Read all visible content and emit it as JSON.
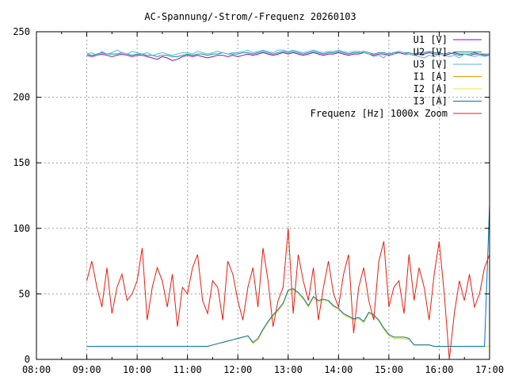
{
  "chart_data": {
    "type": "line",
    "title": "AC-Spannung/-Strom/-Frequenz 20260103",
    "xlabel": "",
    "ylabel": "",
    "xlim": [
      8,
      17
    ],
    "ylim": [
      0,
      250
    ],
    "grid": true,
    "legend_position": "top-right",
    "x_tick_labels": [
      "08:00",
      "09:00",
      "10:00",
      "11:00",
      "12:00",
      "13:00",
      "14:00",
      "15:00",
      "16:00",
      "17:00"
    ],
    "x_tick_values": [
      8,
      9,
      10,
      11,
      12,
      13,
      14,
      15,
      16,
      17
    ],
    "y_ticks": [
      0,
      50,
      100,
      150,
      200,
      250
    ],
    "x_start": 9.0,
    "x_step": 0.1,
    "series": [
      {
        "name": "U1 [V]",
        "color": "#9400d3",
        "values": [
          232,
          231,
          232,
          233,
          232,
          231,
          232,
          233,
          232,
          231,
          232,
          232,
          231,
          230,
          229,
          231,
          230,
          228,
          229,
          231,
          232,
          231,
          232,
          231,
          230,
          231,
          232,
          232,
          231,
          232,
          231,
          232,
          233,
          232,
          233,
          234,
          233,
          232,
          233,
          234,
          233,
          234,
          233,
          232,
          233,
          234,
          233,
          232,
          233,
          233,
          234,
          233,
          232,
          233,
          233,
          234,
          233,
          232,
          233,
          233,
          232,
          233,
          234,
          233,
          233,
          232,
          233,
          233,
          234,
          233,
          233,
          232,
          233,
          234,
          233,
          233,
          232,
          233,
          233,
          232,
          232
        ]
      },
      {
        "name": "U2 [V]",
        "color": "#009e73",
        "values": [
          233,
          232,
          233,
          234,
          233,
          233,
          233,
          234,
          233,
          232,
          233,
          233,
          232,
          232,
          231,
          232,
          232,
          231,
          231,
          232,
          233,
          232,
          233,
          233,
          232,
          233,
          233,
          234,
          233,
          233,
          233,
          234,
          234,
          233,
          234,
          235,
          234,
          233,
          234,
          235,
          234,
          235,
          234,
          233,
          234,
          235,
          234,
          233,
          234,
          234,
          235,
          234,
          233,
          234,
          234,
          235,
          234,
          233,
          234,
          234,
          233,
          234,
          235,
          234,
          234,
          233,
          234,
          234,
          235,
          234,
          234,
          233,
          234,
          233,
          232,
          233,
          233,
          234,
          233,
          233,
          233
        ]
      },
      {
        "name": "U3 [V]",
        "color": "#56b4e9",
        "values": [
          233,
          234,
          232,
          235,
          233,
          234,
          236,
          234,
          233,
          235,
          234,
          233,
          234,
          232,
          233,
          234,
          233,
          232,
          233,
          234,
          234,
          233,
          235,
          234,
          233,
          234,
          235,
          234,
          233,
          234,
          234,
          235,
          236,
          234,
          235,
          236,
          235,
          234,
          236,
          236,
          235,
          236,
          235,
          234,
          235,
          236,
          235,
          234,
          235,
          235,
          236,
          235,
          234,
          235,
          235,
          234,
          233,
          231,
          232,
          230,
          234,
          233,
          235,
          234,
          233,
          232,
          231,
          230,
          232,
          231,
          233,
          232,
          231,
          232,
          230,
          233,
          232,
          231,
          232,
          231,
          232
        ]
      },
      {
        "name": "I1 [A]",
        "color": "#e69f00",
        "values": [
          10,
          10,
          10,
          10,
          10,
          10,
          10,
          10,
          10,
          10,
          10,
          10,
          10,
          10,
          10,
          10,
          10,
          10,
          10,
          10,
          10,
          10,
          10,
          10,
          10,
          11,
          12,
          13,
          14,
          15,
          16,
          17,
          18,
          12,
          15,
          22,
          28,
          33,
          37,
          42,
          52,
          53,
          50,
          46,
          40,
          47,
          44,
          45,
          44,
          40,
          38,
          34,
          32,
          30,
          31,
          28,
          35,
          33,
          29,
          23,
          18,
          16,
          16,
          16,
          15,
          11,
          11,
          11,
          11,
          10,
          10,
          10,
          10,
          10,
          10,
          10,
          10,
          10,
          10,
          10,
          10
        ]
      },
      {
        "name": "I2 [A]",
        "color": "#f0e442",
        "values": [
          10,
          10,
          10,
          10,
          10,
          10,
          10,
          10,
          10,
          10,
          10,
          10,
          10,
          10,
          10,
          10,
          10,
          10,
          10,
          10,
          10,
          10,
          10,
          10,
          10,
          11,
          12,
          13,
          14,
          15,
          16,
          17,
          18,
          12,
          15,
          22,
          28,
          33,
          37,
          42,
          52,
          53,
          50,
          46,
          40,
          47,
          44,
          45,
          44,
          40,
          38,
          34,
          32,
          30,
          31,
          28,
          35,
          33,
          29,
          23,
          18,
          16,
          16,
          16,
          15,
          11,
          11,
          11,
          11,
          10,
          10,
          10,
          10,
          10,
          10,
          10,
          10,
          10,
          10,
          10,
          10
        ]
      },
      {
        "name": "I3 [A]",
        "color": "#0072b2",
        "values": [
          10,
          10,
          10,
          10,
          10,
          10,
          10,
          10,
          10,
          10,
          10,
          10,
          10,
          10,
          10,
          10,
          10,
          10,
          10,
          10,
          10,
          10,
          10,
          10,
          10,
          11,
          12,
          13,
          14,
          15,
          16,
          17,
          18,
          13,
          16,
          23,
          29,
          34,
          38,
          43,
          53,
          54,
          51,
          47,
          41,
          48,
          45,
          46,
          45,
          41,
          39,
          35,
          33,
          31,
          32,
          29,
          36,
          34,
          30,
          24,
          19,
          17,
          17,
          17,
          16,
          11,
          11,
          11,
          11,
          10,
          10,
          10,
          10,
          10,
          10,
          10,
          10,
          10,
          10,
          10,
          118
        ]
      },
      {
        "name": "Frequenz [Hz] 1000x Zoom",
        "color": "#e51e10",
        "values": [
          60,
          75,
          55,
          40,
          70,
          35,
          55,
          65,
          45,
          50,
          60,
          85,
          30,
          55,
          70,
          60,
          40,
          65,
          25,
          55,
          50,
          70,
          80,
          45,
          35,
          60,
          55,
          30,
          75,
          65,
          45,
          30,
          55,
          70,
          40,
          85,
          60,
          25,
          45,
          55,
          100,
          35,
          80,
          60,
          45,
          70,
          30,
          55,
          75,
          50,
          40,
          65,
          80,
          20,
          55,
          70,
          45,
          30,
          75,
          90,
          40,
          55,
          60,
          35,
          80,
          45,
          70,
          55,
          30,
          65,
          90,
          50,
          0,
          35,
          60,
          45,
          65,
          40,
          50,
          70,
          80
        ]
      }
    ]
  }
}
